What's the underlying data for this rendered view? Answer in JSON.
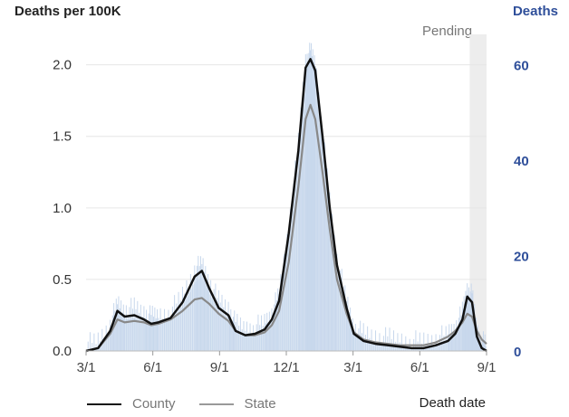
{
  "chart_data": {
    "type": "area",
    "title": "",
    "ylabel_left": "Deaths per 100K",
    "ylabel_right": "Deaths",
    "xlabel": "Death date",
    "pending_label": "Pending",
    "x_ticks": [
      "3/1",
      "6/1",
      "9/1",
      "12/1",
      "3/1",
      "6/1",
      "9/1"
    ],
    "y_ticks_left": [
      "0.0",
      "0.5",
      "1.0",
      "1.5",
      "2.0"
    ],
    "y_ticks_right": [
      "0",
      "20",
      "40",
      "60"
    ],
    "ylim_left": [
      0,
      2.2
    ],
    "ylim_right": [
      0,
      66
    ],
    "x_months": {
      "start": "2020-03",
      "end": "2021-09"
    },
    "grid": true,
    "legend_position": "bottom-left",
    "series": [
      {
        "name": "County",
        "color": "#111111",
        "points": [
          [
            0,
            0.0
          ],
          [
            0.5,
            0.02
          ],
          [
            1.0,
            0.14
          ],
          [
            1.3,
            0.28
          ],
          [
            1.6,
            0.24
          ],
          [
            2.0,
            0.25
          ],
          [
            2.4,
            0.22
          ],
          [
            2.7,
            0.19
          ],
          [
            3.0,
            0.2
          ],
          [
            3.5,
            0.23
          ],
          [
            4.0,
            0.34
          ],
          [
            4.5,
            0.52
          ],
          [
            4.8,
            0.56
          ],
          [
            5.1,
            0.44
          ],
          [
            5.5,
            0.3
          ],
          [
            5.9,
            0.25
          ],
          [
            6.2,
            0.14
          ],
          [
            6.6,
            0.11
          ],
          [
            7.0,
            0.12
          ],
          [
            7.4,
            0.15
          ],
          [
            7.7,
            0.22
          ],
          [
            8.0,
            0.35
          ],
          [
            8.4,
            0.82
          ],
          [
            8.8,
            1.4
          ],
          [
            9.1,
            1.98
          ],
          [
            9.3,
            2.04
          ],
          [
            9.5,
            1.96
          ],
          [
            9.8,
            1.5
          ],
          [
            10.1,
            1.0
          ],
          [
            10.4,
            0.6
          ],
          [
            10.8,
            0.3
          ],
          [
            11.1,
            0.12
          ],
          [
            11.5,
            0.07
          ],
          [
            12.0,
            0.05
          ],
          [
            12.5,
            0.04
          ],
          [
            13.0,
            0.03
          ],
          [
            13.5,
            0.02
          ],
          [
            14.0,
            0.02
          ],
          [
            14.5,
            0.04
          ],
          [
            15.0,
            0.07
          ],
          [
            15.3,
            0.12
          ],
          [
            15.6,
            0.22
          ],
          [
            15.8,
            0.38
          ],
          [
            16.0,
            0.34
          ],
          [
            16.2,
            0.1
          ],
          [
            16.4,
            0.02
          ],
          [
            16.6,
            0.0
          ]
        ]
      },
      {
        "name": "State",
        "color": "#888888",
        "points": [
          [
            0,
            0.0
          ],
          [
            0.5,
            0.02
          ],
          [
            1.0,
            0.12
          ],
          [
            1.3,
            0.22
          ],
          [
            1.6,
            0.2
          ],
          [
            2.0,
            0.21
          ],
          [
            2.4,
            0.2
          ],
          [
            2.7,
            0.18
          ],
          [
            3.0,
            0.19
          ],
          [
            3.5,
            0.22
          ],
          [
            4.0,
            0.28
          ],
          [
            4.5,
            0.36
          ],
          [
            4.8,
            0.37
          ],
          [
            5.1,
            0.33
          ],
          [
            5.5,
            0.26
          ],
          [
            5.9,
            0.21
          ],
          [
            6.2,
            0.14
          ],
          [
            6.6,
            0.11
          ],
          [
            7.0,
            0.11
          ],
          [
            7.4,
            0.13
          ],
          [
            7.7,
            0.18
          ],
          [
            8.0,
            0.28
          ],
          [
            8.4,
            0.62
          ],
          [
            8.8,
            1.15
          ],
          [
            9.1,
            1.62
          ],
          [
            9.3,
            1.72
          ],
          [
            9.5,
            1.62
          ],
          [
            9.8,
            1.25
          ],
          [
            10.1,
            0.85
          ],
          [
            10.4,
            0.5
          ],
          [
            10.8,
            0.26
          ],
          [
            11.1,
            0.13
          ],
          [
            11.5,
            0.08
          ],
          [
            12.0,
            0.06
          ],
          [
            12.5,
            0.05
          ],
          [
            13.0,
            0.04
          ],
          [
            13.5,
            0.04
          ],
          [
            14.0,
            0.04
          ],
          [
            14.5,
            0.06
          ],
          [
            15.0,
            0.1
          ],
          [
            15.3,
            0.14
          ],
          [
            15.6,
            0.2
          ],
          [
            15.8,
            0.26
          ],
          [
            16.0,
            0.24
          ],
          [
            16.2,
            0.14
          ],
          [
            16.4,
            0.08
          ],
          [
            16.6,
            0.05
          ]
        ]
      }
    ],
    "area_fill_color": "#dce7f3",
    "pending_shade_color": "#ededed",
    "pending_start": 15.9
  },
  "legend": {
    "county_label": "County",
    "state_label": "State"
  }
}
